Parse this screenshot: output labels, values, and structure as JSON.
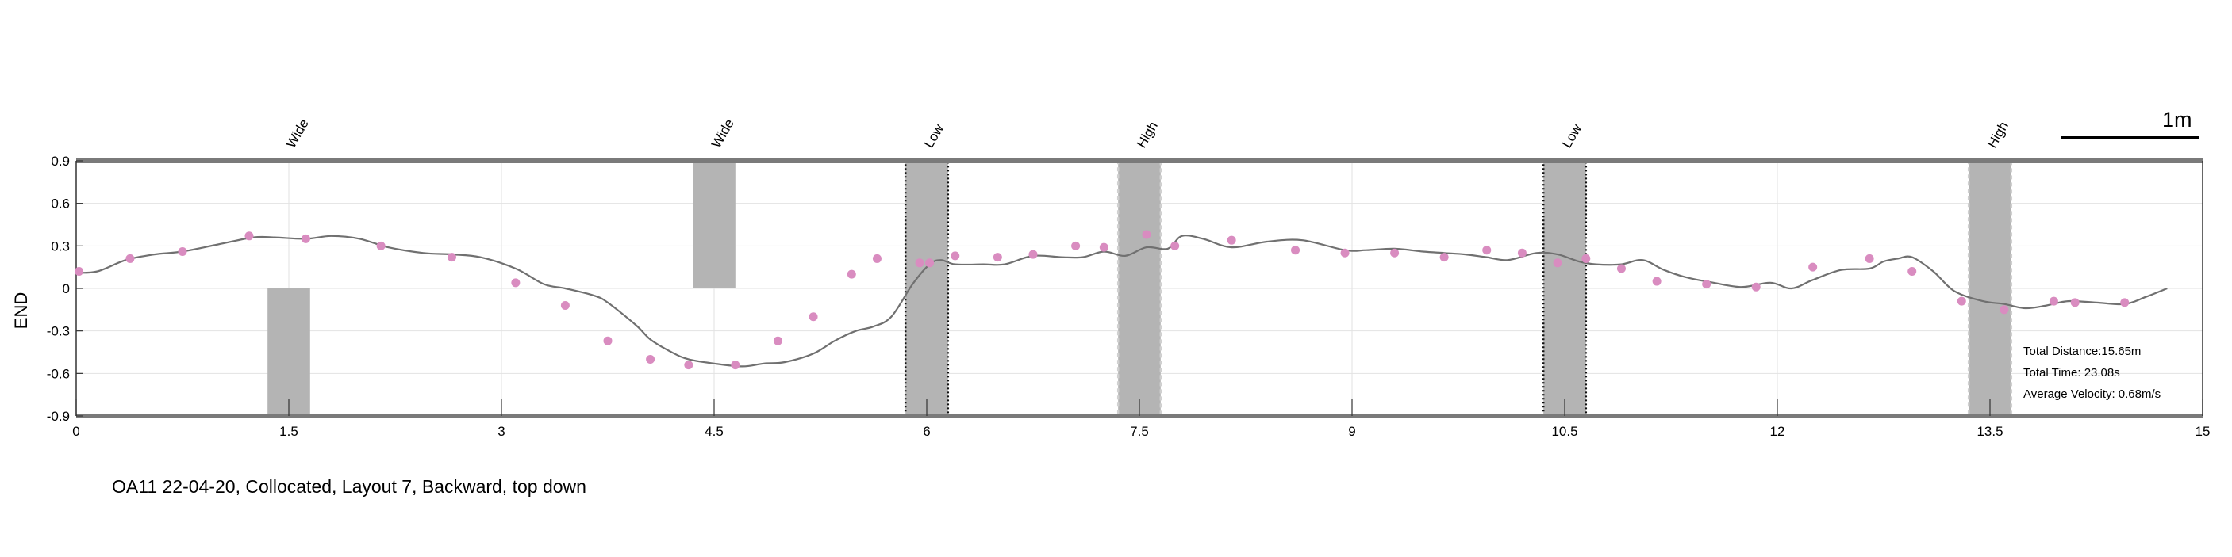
{
  "chart_data": {
    "type": "line",
    "ylabel": "END",
    "xlim": [
      0,
      15
    ],
    "ylim": [
      -0.9,
      0.9
    ],
    "x_ticks": [
      0,
      1.5,
      3,
      4.5,
      6,
      7.5,
      9,
      10.5,
      12,
      13.5,
      15
    ],
    "x_tick_labels": [
      "0",
      "1.5",
      "3",
      "4.5",
      "6",
      "7.5",
      "9",
      "10.5",
      "12",
      "13.5",
      "15"
    ],
    "y_ticks": [
      -0.9,
      -0.6,
      -0.3,
      0,
      0.3,
      0.6,
      0.9
    ],
    "y_tick_labels": [
      "-0.9",
      "-0.6",
      "-0.3",
      "0",
      "0.3",
      "0.6",
      "0.9"
    ],
    "grid": true,
    "line_color": "#707070",
    "marker_color": "#d98cc0",
    "region_color": "#b4b4b4",
    "curve": {
      "x": [
        0,
        0.15,
        0.35,
        0.55,
        0.75,
        1.0,
        1.25,
        1.4,
        1.62,
        1.8,
        2.0,
        2.2,
        2.45,
        2.65,
        2.85,
        3.1,
        3.3,
        3.45,
        3.65,
        3.75,
        3.95,
        4.05,
        4.2,
        4.32,
        4.5,
        4.7,
        4.85,
        5.0,
        5.2,
        5.35,
        5.5,
        5.62,
        5.75,
        5.9,
        6.02,
        6.1,
        6.2,
        6.4,
        6.55,
        6.75,
        6.95,
        7.1,
        7.25,
        7.4,
        7.55,
        7.7,
        7.8,
        7.95,
        8.15,
        8.4,
        8.65,
        8.95,
        9.1,
        9.3,
        9.5,
        9.65,
        9.8,
        9.95,
        10.1,
        10.3,
        10.45,
        10.6,
        10.72,
        10.9,
        11.05,
        11.2,
        11.35,
        11.55,
        11.75,
        11.95,
        12.1,
        12.25,
        12.45,
        12.65,
        12.75,
        12.85,
        12.95,
        13.1,
        13.25,
        13.45,
        13.6,
        13.75,
        13.9,
        14.05,
        14.25,
        14.45,
        14.6,
        14.75
      ],
      "y": [
        0.11,
        0.12,
        0.2,
        0.24,
        0.26,
        0.31,
        0.36,
        0.36,
        0.35,
        0.37,
        0.35,
        0.29,
        0.25,
        0.24,
        0.22,
        0.14,
        0.03,
        0.0,
        -0.05,
        -0.1,
        -0.26,
        -0.36,
        -0.45,
        -0.5,
        -0.53,
        -0.55,
        -0.53,
        -0.52,
        -0.46,
        -0.37,
        -0.3,
        -0.27,
        -0.2,
        0.03,
        0.17,
        0.2,
        0.17,
        0.17,
        0.17,
        0.23,
        0.22,
        0.22,
        0.26,
        0.23,
        0.29,
        0.28,
        0.37,
        0.35,
        0.29,
        0.33,
        0.34,
        0.27,
        0.27,
        0.28,
        0.26,
        0.25,
        0.24,
        0.22,
        0.2,
        0.25,
        0.24,
        0.19,
        0.17,
        0.17,
        0.2,
        0.13,
        0.08,
        0.04,
        0.01,
        0.04,
        0.0,
        0.06,
        0.13,
        0.14,
        0.19,
        0.21,
        0.22,
        0.12,
        -0.02,
        -0.09,
        -0.11,
        -0.14,
        -0.12,
        -0.09,
        -0.1,
        -0.11,
        -0.06,
        0.0
      ]
    },
    "markers": {
      "x": [
        0.02,
        0.38,
        0.75,
        1.22,
        1.62,
        2.15,
        2.65,
        3.1,
        3.45,
        3.75,
        4.05,
        4.32,
        4.65,
        4.95,
        5.2,
        5.47,
        5.65,
        5.95,
        6.02,
        6.2,
        6.5,
        6.75,
        7.05,
        7.25,
        7.55,
        7.75,
        8.15,
        8.6,
        8.95,
        9.3,
        9.65,
        9.95,
        10.2,
        10.45,
        10.65,
        10.9,
        11.15,
        11.5,
        11.85,
        12.25,
        12.65,
        12.95,
        13.3,
        13.6,
        13.95,
        14.1,
        14.45
      ],
      "y": [
        0.12,
        0.21,
        0.26,
        0.37,
        0.35,
        0.3,
        0.22,
        0.04,
        -0.12,
        -0.37,
        -0.5,
        -0.54,
        -0.54,
        -0.37,
        -0.2,
        0.1,
        0.21,
        0.18,
        0.18,
        0.23,
        0.22,
        0.24,
        0.3,
        0.29,
        0.38,
        0.3,
        0.34,
        0.27,
        0.25,
        0.25,
        0.22,
        0.27,
        0.25,
        0.18,
        0.21,
        0.14,
        0.05,
        0.03,
        0.01,
        0.15,
        0.21,
        0.12,
        -0.09,
        -0.15,
        -0.09,
        -0.1,
        -0.1
      ]
    },
    "regions": [
      {
        "label": "Wide",
        "x0": 1.35,
        "x1": 1.65,
        "y0": -0.9,
        "y1": 0.0,
        "border": "none"
      },
      {
        "label": "Wide",
        "x0": 4.35,
        "x1": 4.65,
        "y0": 0.0,
        "y1": 0.9,
        "border": "none"
      },
      {
        "label": "Low",
        "x0": 5.85,
        "x1": 6.15,
        "y0": -0.9,
        "y1": 0.9,
        "border": "dotted-dark"
      },
      {
        "label": "High",
        "x0": 7.35,
        "x1": 7.65,
        "y0": -0.9,
        "y1": 0.9,
        "border": "dashed-light"
      },
      {
        "label": "Low",
        "x0": 10.35,
        "x1": 10.65,
        "y0": -0.9,
        "y1": 0.9,
        "border": "dotted-dark"
      },
      {
        "label": "High",
        "x0": 13.35,
        "x1": 13.65,
        "y0": -0.9,
        "y1": 0.9,
        "border": "dashed-light"
      }
    ],
    "stats": [
      "Total Distance:15.65m",
      "Total Time: 23.08s",
      "Average Velocity: 0.68m/s"
    ],
    "scale_bar_label": "1m",
    "caption": "OA11 22-04-20, Collocated, Layout 7, Backward, top down"
  }
}
